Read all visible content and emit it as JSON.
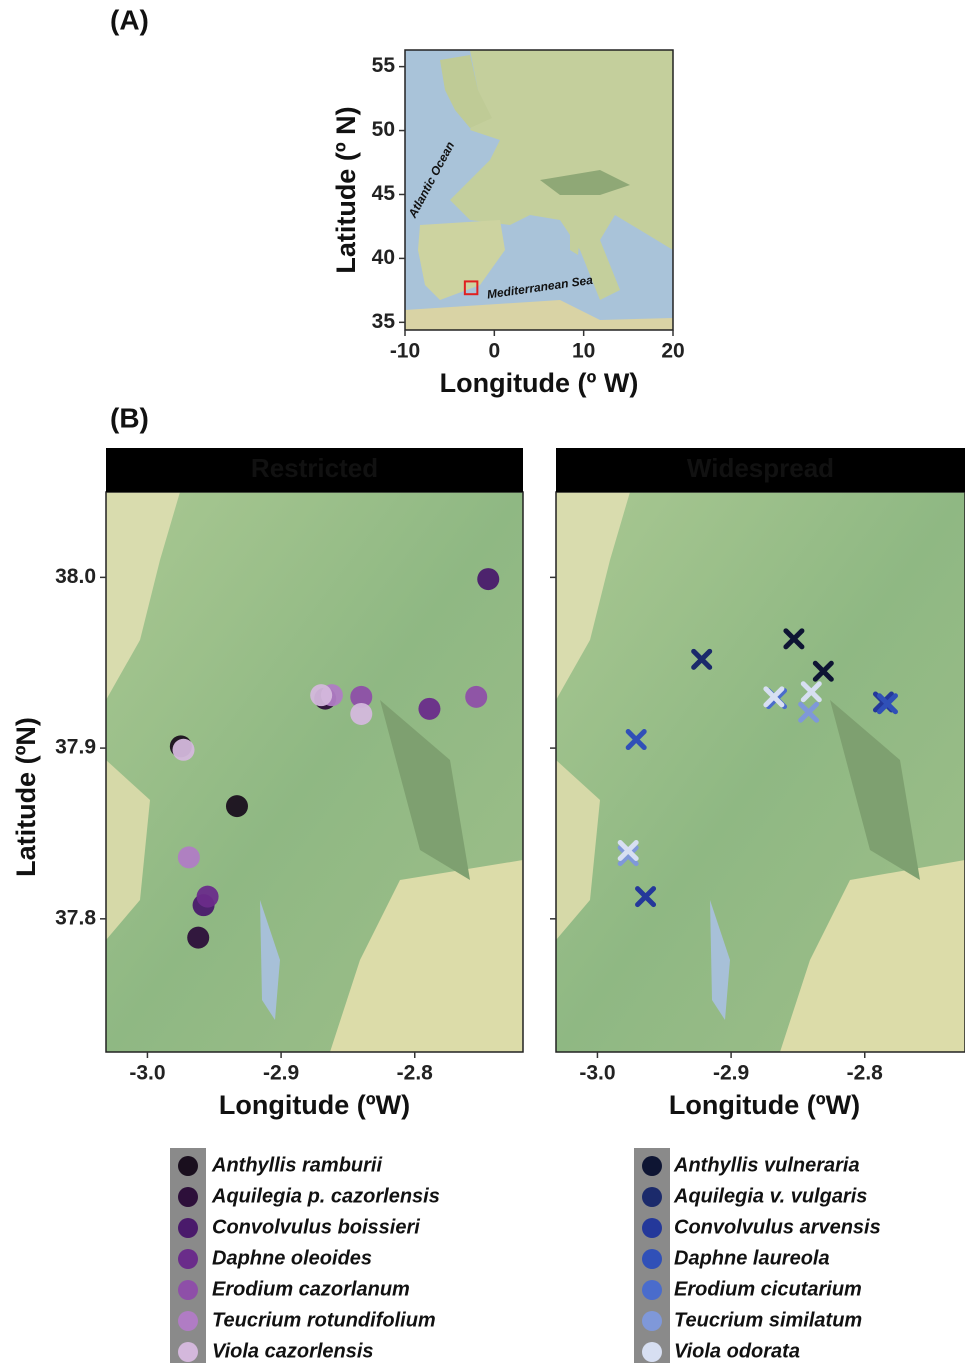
{
  "chart_data": [
    {
      "type": "map",
      "panel_label": "(A)",
      "xlabel": "Longitude (º W)",
      "ylabel": "Latitude (º N)",
      "xlim": [
        -10,
        20
      ],
      "ylim": [
        34.4,
        56.3
      ],
      "xticks": [
        -10,
        0,
        10,
        20
      ],
      "yticks": [
        35,
        40,
        45,
        50,
        55
      ],
      "annotations": [
        "Atlantic Ocean",
        "Mediterranean Sea"
      ],
      "study_area": {
        "x": [
          -3.3,
          -1.9
        ],
        "y": [
          37.2,
          38.2
        ],
        "color": "#e02020"
      }
    },
    {
      "type": "scatter",
      "panel_label": "(B)",
      "title": "Restricted",
      "marker": "circle",
      "xlabel": "Longitude (ºW)",
      "ylabel": "Latitude (ºN)",
      "xlim": [
        -3.031,
        -2.719
      ],
      "ylim": [
        37.722,
        38.05
      ],
      "xticks": [
        {
          "value": -3,
          "label": "-3.0"
        },
        -2.9,
        -2.8
      ],
      "yticks": [
        {
          "value": 38,
          "label": "38.0"
        },
        37.9,
        37.8
      ],
      "series": [
        {
          "name": "Anthyllis ramburii",
          "color": "#1a0f1e",
          "x": [
            -2.975,
            -2.933
          ],
          "y": [
            37.901,
            37.866
          ]
        },
        {
          "name": "Aquilegia p. cazorlensis",
          "color": "#2d0f3a",
          "x": [
            -2.962,
            -2.867
          ],
          "y": [
            37.789,
            37.929
          ]
        },
        {
          "name": "Convolvulus boissieri",
          "color": "#4a1a6b",
          "x": [
            -2.745,
            -2.958
          ],
          "y": [
            37.999,
            37.808
          ]
        },
        {
          "name": "Daphne oleoides",
          "color": "#6a2c8a",
          "x": [
            -2.789,
            -2.955
          ],
          "y": [
            37.923,
            37.813
          ]
        },
        {
          "name": "Erodium cazorlanum",
          "color": "#8e4fa8",
          "x": [
            -2.84,
            -2.754
          ],
          "y": [
            37.93,
            37.93
          ]
        },
        {
          "name": "Teucrium rotundifolium",
          "color": "#b07cc4",
          "x": [
            -2.862,
            -2.969
          ],
          "y": [
            37.931,
            37.836
          ]
        },
        {
          "name": "Viola cazorlensis",
          "color": "#d4b8dc",
          "x": [
            -2.87,
            -2.84,
            -2.973
          ],
          "y": [
            37.931,
            37.92,
            37.899
          ]
        }
      ]
    },
    {
      "type": "scatter",
      "title": "Widespread",
      "marker": "x",
      "xlabel": "Longitude (ºW)",
      "xlim": [
        -3.031,
        -2.725
      ],
      "ylim": [
        37.722,
        38.05
      ],
      "xticks": [
        {
          "value": -3,
          "label": "-3.0"
        },
        -2.9,
        -2.8
      ],
      "yticks": [
        38,
        37.9,
        37.8
      ],
      "series": [
        {
          "name": "Anthyllis vulneraria",
          "color": "#0e1533",
          "x": [
            -2.853,
            -2.831
          ],
          "y": [
            37.964,
            37.945
          ]
        },
        {
          "name": "Aquilegia v. vulgaris",
          "color": "#1b2a6b",
          "x": [
            -2.922
          ],
          "y": [
            37.952
          ]
        },
        {
          "name": "Convolvulus arvensis",
          "color": "#24389a",
          "x": [
            -2.786,
            -2.964
          ],
          "y": [
            37.927,
            37.813
          ]
        },
        {
          "name": "Daphne laureola",
          "color": "#3050b8",
          "x": [
            -2.783,
            -2.971
          ],
          "y": [
            37.926,
            37.905
          ]
        },
        {
          "name": "Erodium cicutarium",
          "color": "#4a6ccc",
          "x": [
            -2.866
          ],
          "y": [
            37.929
          ]
        },
        {
          "name": "Teucrium similatum",
          "color": "#7f98d9",
          "x": [
            -2.842,
            -2.977
          ],
          "y": [
            37.921,
            37.837
          ]
        },
        {
          "name": "Viola odorata",
          "color": "#d7dff2",
          "x": [
            -2.868,
            -2.84,
            -2.977
          ],
          "y": [
            37.93,
            37.933,
            37.84
          ]
        }
      ]
    }
  ]
}
